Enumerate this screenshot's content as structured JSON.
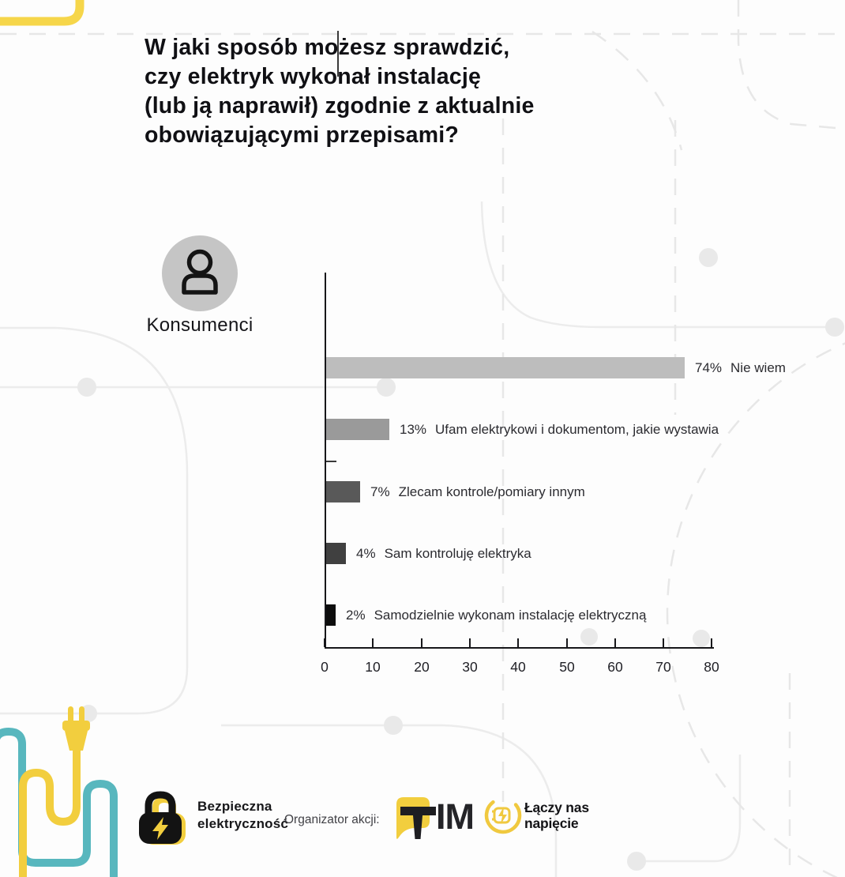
{
  "title": {
    "lines": [
      "W jaki sposób możesz sprawdzić,",
      "czy elektryk wykonał instalację",
      "(lub ją naprawił) zgodnie z aktualnie",
      "obowiązującymi przepisami?"
    ]
  },
  "audience": {
    "label": "Konsumenci",
    "icon": "person-icon"
  },
  "chart_data": {
    "type": "bar",
    "orientation": "horizontal",
    "title": "",
    "xlabel": "",
    "ylabel": "",
    "xlim": [
      0,
      80
    ],
    "x_ticks": [
      0,
      10,
      20,
      30,
      40,
      50,
      60,
      70,
      80
    ],
    "grid": false,
    "legend": null,
    "categories": [
      "Nie wiem",
      "Ufam elektrykowi i dokumentom, jakie wystawia",
      "Zlecam kontrole/pomiary innym",
      "Sam kontroluję elektryka",
      "Samodzielnie wykonam instalację elektryczną"
    ],
    "values": [
      74,
      13,
      7,
      4,
      2
    ],
    "value_labels": [
      "74%",
      "13%",
      "7%",
      "4%",
      "2%"
    ],
    "bar_colors": [
      "#bdbdbd",
      "#9a9a9a",
      "#595959",
      "#404040",
      "#0d0d0d"
    ]
  },
  "footer": {
    "campaign": {
      "icon": "padlock-lightning-icon",
      "line1": "Bezpieczna",
      "line2": "elektryczność"
    },
    "organizer_label": "Organizator akcji:",
    "tim_logo": {
      "name": "TIM",
      "icon": "tim-flag-icon",
      "letters": "IM"
    },
    "laczy_logo": {
      "name": "Łączy nas napięcie",
      "icon": "lightning-circle-icon",
      "line1": "Łączy nas",
      "line2": "napięcie"
    }
  },
  "colors": {
    "accent_yellow": "#F2CE3E",
    "teal": "#58B7BE",
    "axis_black": "#17171A",
    "pattern_gray": "#ECECEC"
  }
}
